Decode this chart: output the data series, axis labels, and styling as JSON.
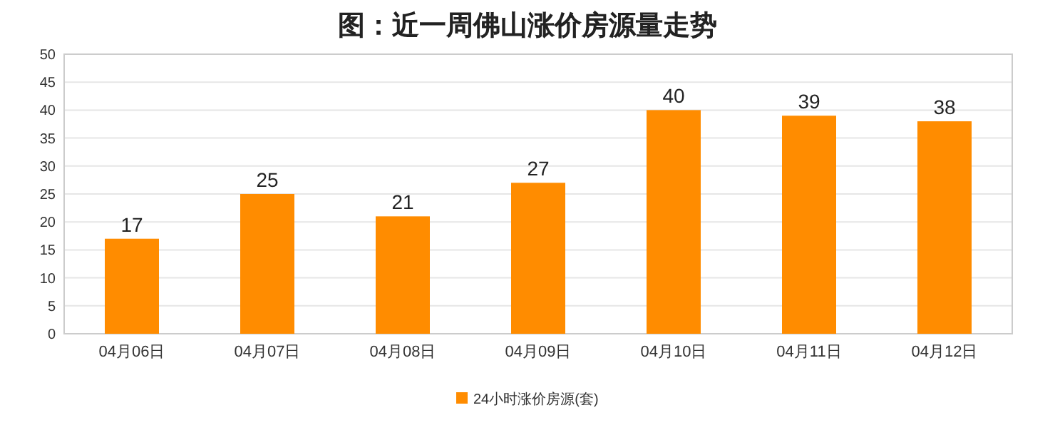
{
  "chart_data": {
    "type": "bar",
    "title": "图：近一周佛山涨价房源量走势",
    "categories": [
      "04月06日",
      "04月07日",
      "04月08日",
      "04月09日",
      "04月10日",
      "04月11日",
      "04月12日"
    ],
    "series": [
      {
        "name": "24小时涨价房源(套)",
        "color": "#ff8c00",
        "values": [
          17,
          25,
          21,
          27,
          40,
          39,
          38
        ]
      }
    ],
    "ylim": [
      0,
      50
    ],
    "yticks": [
      0,
      5,
      10,
      15,
      20,
      25,
      30,
      35,
      40,
      45,
      50
    ],
    "grid": "y",
    "legend": "bottom",
    "data_labels": true
  }
}
